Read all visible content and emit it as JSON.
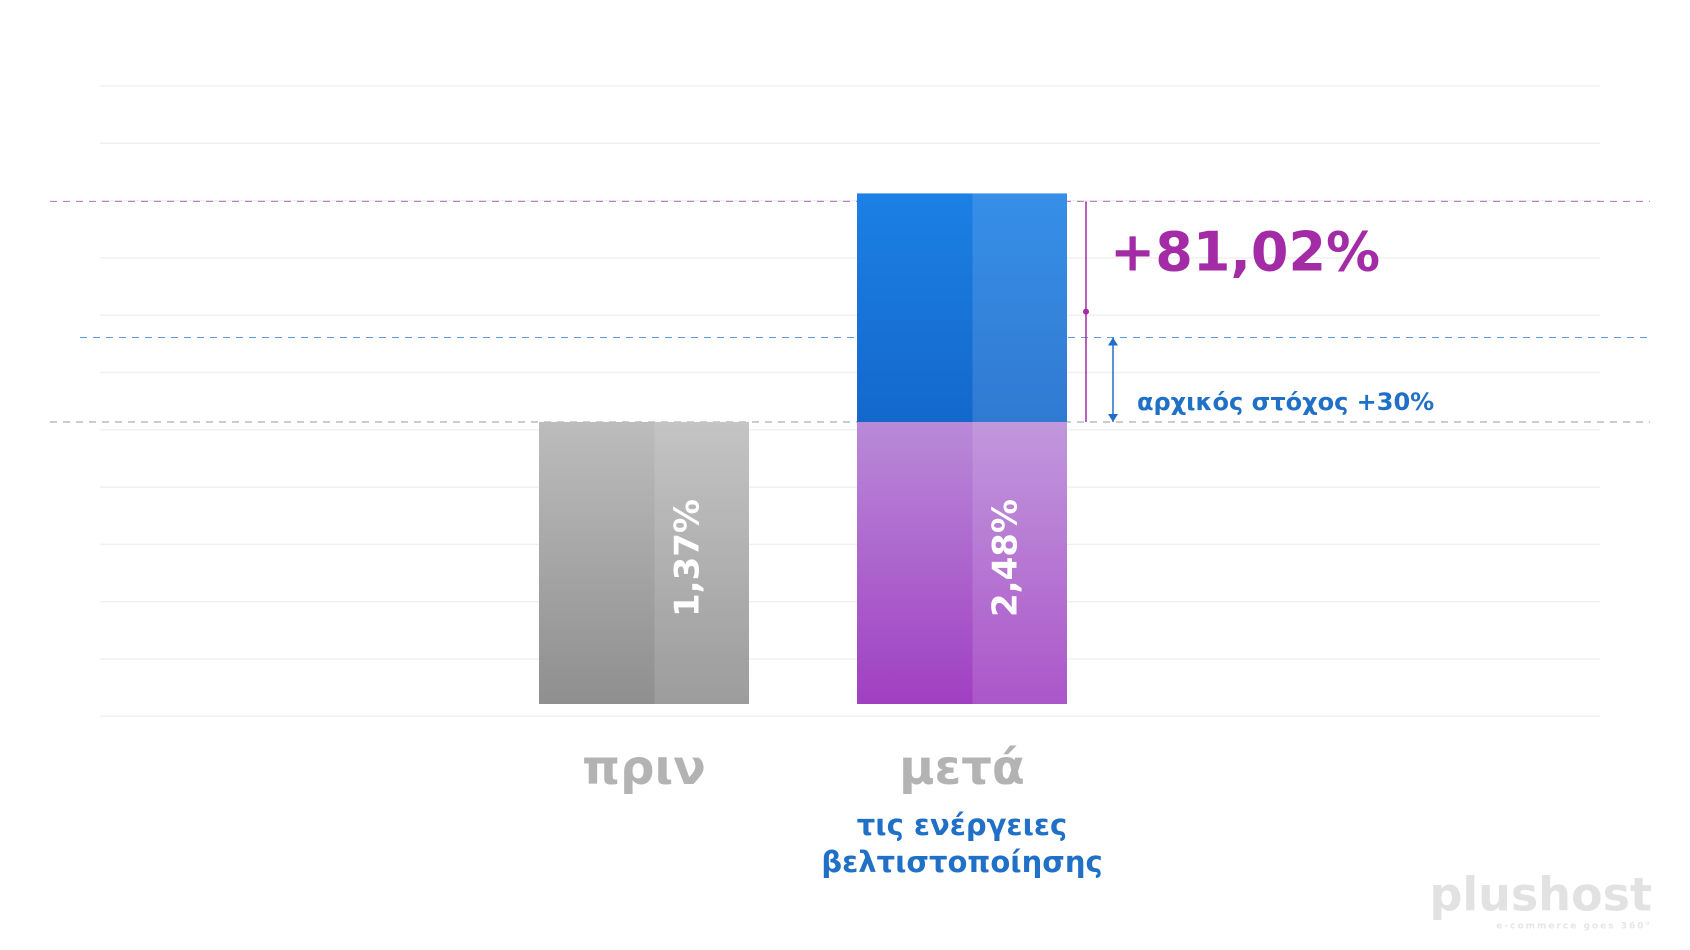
{
  "chart_data": {
    "type": "bar",
    "categories": [
      "πριν",
      "μετά"
    ],
    "values": [
      1.37,
      2.48
    ],
    "value_labels": [
      "1,37%",
      "2,48%"
    ],
    "colors": [
      "#8f8f8f",
      "#a03fc2"
    ],
    "gain_color": "#1c80e4",
    "caption_lines": [
      "τις ενέργειες",
      "βελτιστοποίησης"
    ],
    "target": {
      "value": 1.78,
      "label": "αρχικός στόχος +30%",
      "color": "#1f70c6"
    },
    "gain": {
      "label": "+81,02%",
      "color": "#a32ca6"
    },
    "ylim": [
      0,
      3.4
    ],
    "logo": {
      "name": "plushost",
      "tagline": "e-commerce goes 360°"
    }
  }
}
